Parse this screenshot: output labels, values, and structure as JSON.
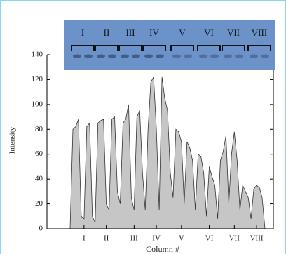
{
  "chart_data": {
    "type": "area",
    "y_label": "Intensity",
    "x_label": "Column #",
    "categories": [
      null,
      null,
      null,
      null,
      null,
      "I",
      null,
      null,
      null,
      null,
      null,
      null,
      null,
      "II",
      null,
      null,
      null,
      null,
      null,
      null,
      null,
      null,
      null,
      "III",
      null,
      null,
      null,
      null,
      null,
      null,
      null,
      "IV",
      null,
      null,
      null,
      null,
      null,
      null,
      null,
      null,
      "V",
      null,
      null,
      null,
      null,
      null,
      null,
      null,
      null,
      null,
      "VI",
      null,
      null,
      null,
      null,
      null,
      null,
      null,
      null,
      "VII",
      null,
      null,
      null,
      null,
      null,
      null,
      null,
      "VIII",
      null,
      null,
      null
    ],
    "values": [
      0,
      80,
      82,
      88,
      10,
      8,
      82,
      85,
      10,
      5,
      85,
      87,
      88,
      20,
      15,
      88,
      90,
      30,
      20,
      85,
      88,
      100,
      25,
      15,
      90,
      95,
      45,
      15,
      80,
      118,
      122,
      80,
      15,
      122,
      105,
      95,
      45,
      25,
      80,
      78,
      70,
      20,
      70,
      65,
      55,
      15,
      60,
      58,
      45,
      10,
      50,
      42,
      35,
      8,
      55,
      62,
      75,
      20,
      60,
      78,
      55,
      15,
      35,
      30,
      25,
      8,
      32,
      35,
      33,
      25,
      0
    ],
    "color": "#c6c6c6",
    "ylim": [
      0,
      140
    ],
    "yticks": [
      0,
      20,
      40,
      60,
      80,
      100,
      120,
      140
    ]
  },
  "gel_inset": {
    "lane_labels": [
      "I",
      "II",
      "III",
      "IV",
      "V",
      "VI",
      "VII",
      "VIII"
    ]
  }
}
